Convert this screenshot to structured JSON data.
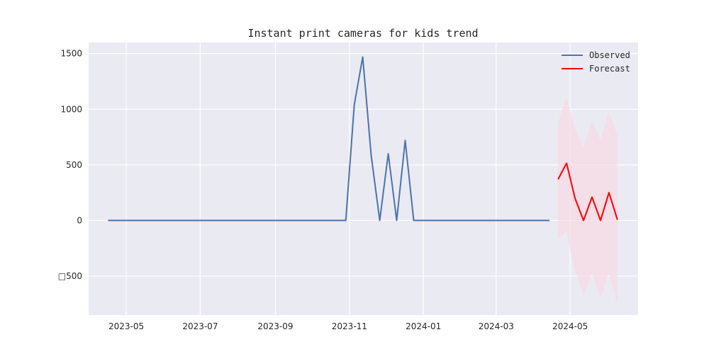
{
  "chart_data": {
    "type": "line",
    "title": "Instant print cameras for kids trend",
    "xlabel": "",
    "ylabel": "",
    "x_axis_type": "date",
    "xlim": [
      "2023-03-31",
      "2024-06-26"
    ],
    "ylim": [
      -850,
      1600
    ],
    "x_ticks": [
      {
        "date": "2023-05-01",
        "label": "2023-05"
      },
      {
        "date": "2023-07-01",
        "label": "2023-07"
      },
      {
        "date": "2023-09-01",
        "label": "2023-09"
      },
      {
        "date": "2023-11-01",
        "label": "2023-11"
      },
      {
        "date": "2024-01-01",
        "label": "2024-01"
      },
      {
        "date": "2024-03-01",
        "label": "2024-03"
      },
      {
        "date": "2024-05-01",
        "label": "2024-05"
      }
    ],
    "y_ticks": [
      {
        "value": 1500,
        "label": "1500"
      },
      {
        "value": 1000,
        "label": "1000"
      },
      {
        "value": 500,
        "label": "500"
      },
      {
        "value": 0,
        "label": "0"
      },
      {
        "value": -500,
        "label": "□500"
      }
    ],
    "grid": true,
    "legend_position": "top-right",
    "colors": {
      "background": "#eaeaf2",
      "grid": "#ffffff",
      "observed": "#4c72b0",
      "forecast": "#ff0000",
      "band": "#f8d9e4"
    },
    "series": [
      {
        "name": "Observed",
        "points": [
          [
            "2023-04-16",
            0
          ],
          [
            "2023-04-23",
            0
          ],
          [
            "2023-04-30",
            0
          ],
          [
            "2023-05-07",
            0
          ],
          [
            "2023-05-14",
            0
          ],
          [
            "2023-05-21",
            0
          ],
          [
            "2023-05-28",
            0
          ],
          [
            "2023-06-04",
            0
          ],
          [
            "2023-06-11",
            0
          ],
          [
            "2023-06-18",
            0
          ],
          [
            "2023-06-25",
            0
          ],
          [
            "2023-07-02",
            0
          ],
          [
            "2023-07-09",
            0
          ],
          [
            "2023-07-16",
            0
          ],
          [
            "2023-07-23",
            0
          ],
          [
            "2023-07-30",
            0
          ],
          [
            "2023-08-06",
            0
          ],
          [
            "2023-08-13",
            0
          ],
          [
            "2023-08-20",
            0
          ],
          [
            "2023-08-27",
            0
          ],
          [
            "2023-09-03",
            0
          ],
          [
            "2023-09-10",
            0
          ],
          [
            "2023-09-17",
            0
          ],
          [
            "2023-09-24",
            0
          ],
          [
            "2023-10-01",
            0
          ],
          [
            "2023-10-08",
            0
          ],
          [
            "2023-10-15",
            0
          ],
          [
            "2023-10-22",
            0
          ],
          [
            "2023-10-29",
            0
          ],
          [
            "2023-11-05",
            1040
          ],
          [
            "2023-11-12",
            1470
          ],
          [
            "2023-11-19",
            580
          ],
          [
            "2023-11-26",
            0
          ],
          [
            "2023-12-03",
            600
          ],
          [
            "2023-12-10",
            0
          ],
          [
            "2023-12-17",
            720
          ],
          [
            "2023-12-24",
            0
          ],
          [
            "2023-12-31",
            0
          ],
          [
            "2024-01-07",
            0
          ],
          [
            "2024-01-14",
            0
          ],
          [
            "2024-01-21",
            0
          ],
          [
            "2024-01-28",
            0
          ],
          [
            "2024-02-04",
            0
          ],
          [
            "2024-02-11",
            0
          ],
          [
            "2024-02-18",
            0
          ],
          [
            "2024-02-25",
            0
          ],
          [
            "2024-03-03",
            0
          ],
          [
            "2024-03-10",
            0
          ],
          [
            "2024-03-17",
            0
          ],
          [
            "2024-03-24",
            0
          ],
          [
            "2024-03-31",
            0
          ],
          [
            "2024-04-07",
            0
          ],
          [
            "2024-04-14",
            0
          ]
        ]
      },
      {
        "name": "Forecast",
        "points": [
          [
            "2024-04-21",
            370
          ],
          [
            "2024-04-28",
            515
          ],
          [
            "2024-05-05",
            200
          ],
          [
            "2024-05-12",
            0
          ],
          [
            "2024-05-19",
            210
          ],
          [
            "2024-05-26",
            0
          ],
          [
            "2024-06-02",
            250
          ],
          [
            "2024-06-09",
            5
          ]
        ]
      }
    ],
    "confidence_band": {
      "points": [
        [
          "2024-04-21",
          -160,
          880
        ],
        [
          "2024-04-28",
          -100,
          1110
        ],
        [
          "2024-05-05",
          -450,
          820
        ],
        [
          "2024-05-12",
          -670,
          660
        ],
        [
          "2024-05-19",
          -480,
          890
        ],
        [
          "2024-05-26",
          -700,
          720
        ],
        [
          "2024-06-02",
          -470,
          980
        ],
        [
          "2024-06-09",
          -760,
          760
        ]
      ]
    }
  }
}
